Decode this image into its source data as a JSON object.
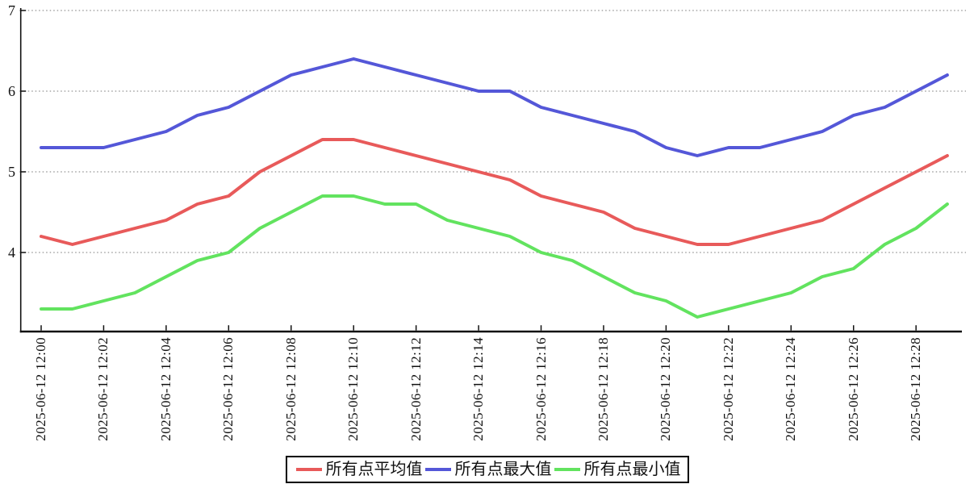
{
  "chart_data": {
    "type": "line",
    "title": "",
    "x": [
      "2025-06-12 12:00",
      "2025-06-12 12:01",
      "2025-06-12 12:02",
      "2025-06-12 12:03",
      "2025-06-12 12:04",
      "2025-06-12 12:05",
      "2025-06-12 12:06",
      "2025-06-12 12:07",
      "2025-06-12 12:08",
      "2025-06-12 12:09",
      "2025-06-12 12:10",
      "2025-06-12 12:11",
      "2025-06-12 12:12",
      "2025-06-12 12:13",
      "2025-06-12 12:14",
      "2025-06-12 12:15",
      "2025-06-12 12:16",
      "2025-06-12 12:17",
      "2025-06-12 12:18",
      "2025-06-12 12:19",
      "2025-06-12 12:20",
      "2025-06-12 12:21",
      "2025-06-12 12:22",
      "2025-06-12 12:23",
      "2025-06-12 12:24",
      "2025-06-12 12:25",
      "2025-06-12 12:26",
      "2025-06-12 12:27",
      "2025-06-12 12:28",
      "2025-06-12 12:29"
    ],
    "x_label_every": 2,
    "yticks": [
      7,
      6,
      5,
      4
    ],
    "ylim": [
      3.02,
      7.0
    ],
    "grid": "horizontal-dotted",
    "legend_position": "bottom-center",
    "series": [
      {
        "id": "avg",
        "name": "所有点平均值",
        "color": "#e85a5a",
        "values": [
          4.2,
          4.1,
          4.2,
          4.3,
          4.4,
          4.6,
          4.7,
          5.0,
          5.2,
          5.4,
          5.4,
          5.3,
          5.2,
          5.1,
          5.0,
          4.9,
          4.7,
          4.6,
          4.5,
          4.3,
          4.2,
          4.1,
          4.1,
          4.2,
          4.3,
          4.4,
          4.6,
          4.8,
          5.0,
          5.2
        ]
      },
      {
        "id": "max",
        "name": "所有点最大值",
        "color": "#5457d8",
        "values": [
          5.3,
          5.3,
          5.3,
          5.4,
          5.5,
          5.7,
          5.8,
          6.0,
          6.2,
          6.3,
          6.4,
          6.3,
          6.2,
          6.1,
          6.0,
          6.0,
          5.8,
          5.7,
          5.6,
          5.5,
          5.3,
          5.2,
          5.3,
          5.3,
          5.4,
          5.5,
          5.7,
          5.8,
          6.0,
          6.2
        ]
      },
      {
        "id": "min",
        "name": "所有点最小值",
        "color": "#62e35f",
        "values": [
          3.3,
          3.3,
          3.4,
          3.5,
          3.7,
          3.9,
          4.0,
          4.3,
          4.5,
          4.7,
          4.7,
          4.6,
          4.6,
          4.4,
          4.3,
          4.2,
          4.0,
          3.9,
          3.7,
          3.5,
          3.4,
          3.2,
          3.3,
          3.4,
          3.5,
          3.7,
          3.8,
          4.1,
          4.3,
          4.6
        ]
      }
    ]
  },
  "colors": {
    "axis": "#111111",
    "gridline": "#777777",
    "background": "#ffffff"
  }
}
